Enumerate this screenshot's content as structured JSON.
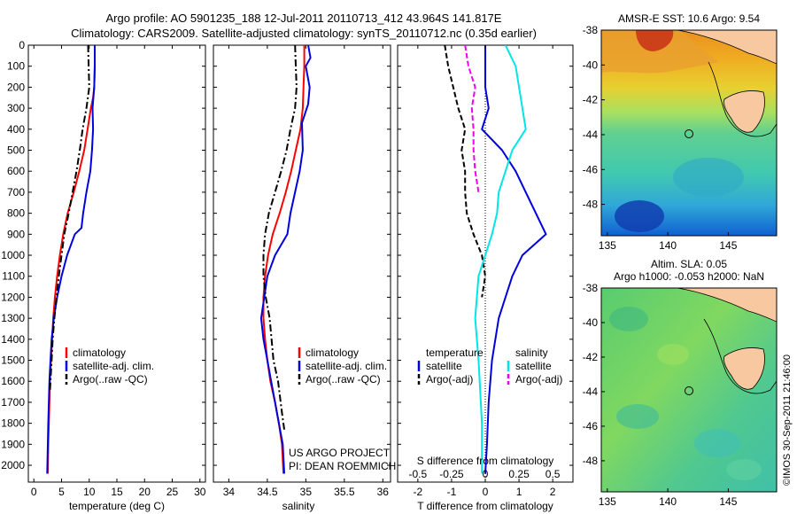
{
  "header": {
    "title_line1": "Argo profile: AO 5901235_188 12-Jul-2011 20110713_412 43.964S 141.817E",
    "title_line2": "Climatology: CARS2009. Satellite-adjusted climatology: synTS_20110712.nc (0.35d earlier)"
  },
  "colors": {
    "climatology": "#ff0000",
    "satellite": "#0000dd",
    "argo": "#000000",
    "sat_salinity": "#00e5e5",
    "argo_salinity": "#ee00ee"
  },
  "chart_data": [
    {
      "type": "line",
      "id": "temperature",
      "xlabel": "temperature (deg C)",
      "ylabel": "",
      "xlim": [
        -1,
        31
      ],
      "ylim": [
        2080,
        0
      ],
      "xticks": [
        0,
        5,
        10,
        15,
        20,
        25,
        30
      ],
      "yticks": [
        0,
        100,
        200,
        300,
        400,
        500,
        600,
        700,
        800,
        900,
        1000,
        1100,
        1200,
        1300,
        1400,
        1500,
        1600,
        1700,
        1800,
        1900,
        2000
      ],
      "legend": {
        "position": "lower-center",
        "labels": [
          "climatology",
          "satellite-adj. clim.",
          "Argo(..raw -QC)"
        ]
      },
      "series": [
        {
          "name": "climatology",
          "color": "#ff0000",
          "style": "solid",
          "x": [
            11,
            11,
            10.9,
            10.7,
            10.3,
            9.7,
            9.1,
            8.2,
            7.2,
            6.1,
            5.3,
            4.7,
            4.2,
            3.8,
            3.5,
            3.3,
            3.1,
            2.9,
            2.8,
            2.6,
            2.5
          ],
          "y": [
            0,
            100,
            200,
            250,
            300,
            400,
            500,
            600,
            700,
            800,
            900,
            1000,
            1100,
            1200,
            1300,
            1400,
            1500,
            1600,
            1700,
            1900,
            2040
          ]
        },
        {
          "name": "satellite-adj. clim.",
          "color": "#0000dd",
          "style": "solid",
          "x": [
            11,
            11,
            10.9,
            10.6,
            10.7,
            10.5,
            10.2,
            9.5,
            8.9,
            8.6,
            7.4,
            6.0,
            5.0,
            4.2,
            3.6,
            3.2,
            3.0,
            2.8,
            2.6,
            2.4
          ],
          "y": [
            0,
            100,
            200,
            300,
            400,
            500,
            600,
            700,
            800,
            870,
            900,
            1000,
            1100,
            1200,
            1300,
            1400,
            1500,
            1600,
            1800,
            2040
          ]
        },
        {
          "name": "Argo(..raw -QC)",
          "color": "#000000",
          "style": "dashdot",
          "x": [
            9.8,
            9.9,
            10.0,
            9.5,
            8.8,
            8.3,
            7.7,
            7.0,
            6.3,
            5.5,
            5.0,
            4.5,
            4.1,
            3.7,
            3.4,
            3.2,
            3.0,
            2.9
          ],
          "y": [
            0,
            100,
            200,
            300,
            400,
            500,
            600,
            700,
            800,
            900,
            1000,
            1100,
            1200,
            1300,
            1400,
            1500,
            1600,
            1650
          ]
        }
      ]
    },
    {
      "type": "line",
      "id": "salinity",
      "xlabel": "salinity",
      "ylabel": "",
      "xlim": [
        33.8,
        36.1
      ],
      "ylim": [
        2080,
        0
      ],
      "xticks": [
        34,
        34.5,
        35,
        35.5,
        36
      ],
      "legend": {
        "position": "lower-center",
        "labels": [
          "climatology",
          "satellite-adj. clim.",
          "Argo(..raw -QC)"
        ]
      },
      "annotation": [
        "US ARGO PROJECT",
        "PI: DEAN ROEMMICH"
      ],
      "series": [
        {
          "name": "climatology",
          "color": "#ff0000",
          "style": "solid",
          "x": [
            34.98,
            34.98,
            34.97,
            34.96,
            34.93,
            34.87,
            34.81,
            34.74,
            34.66,
            34.57,
            34.51,
            34.47,
            34.45,
            34.45,
            34.47,
            34.5,
            34.54,
            34.6,
            34.65,
            34.69,
            34.71
          ],
          "y": [
            0,
            100,
            200,
            300,
            400,
            500,
            600,
            700,
            800,
            900,
            1000,
            1100,
            1200,
            1300,
            1400,
            1500,
            1600,
            1700,
            1800,
            1900,
            2040
          ]
        },
        {
          "name": "satellite-adj. clim.",
          "color": "#0000dd",
          "style": "solid",
          "x": [
            35.03,
            35.06,
            35.0,
            35.05,
            35.03,
            34.95,
            34.96,
            34.92,
            34.86,
            34.8,
            34.76,
            34.6,
            34.5,
            34.46,
            34.42,
            34.45,
            34.5,
            34.55,
            34.6,
            34.65,
            34.7,
            34.72
          ],
          "y": [
            0,
            60,
            100,
            200,
            280,
            370,
            500,
            600,
            700,
            800,
            900,
            1000,
            1100,
            1200,
            1300,
            1400,
            1500,
            1600,
            1700,
            1800,
            1900,
            2040
          ]
        },
        {
          "name": "Argo(..raw -QC)",
          "color": "#000000",
          "style": "dashdot",
          "x": [
            34.86,
            34.87,
            34.88,
            34.86,
            34.8,
            34.75,
            34.68,
            34.6,
            34.52,
            34.47,
            34.45,
            34.45,
            34.48,
            34.53,
            34.58,
            34.64,
            34.69,
            34.72
          ],
          "y": [
            0,
            100,
            200,
            300,
            400,
            500,
            600,
            700,
            800,
            900,
            1000,
            1100,
            1200,
            1300,
            1500,
            1600,
            1750,
            1830
          ]
        }
      ]
    },
    {
      "type": "line",
      "id": "difference",
      "xlabel": "T difference from climatology",
      "xlabel_top": "S difference from climatology",
      "xlim": [
        -2.6,
        2.6
      ],
      "ylim": [
        2080,
        0
      ],
      "xticks": [
        -2,
        -1,
        0,
        1,
        2
      ],
      "xticks_top": [
        "-0.5",
        "-0.25",
        "0",
        "0.25",
        "0.5"
      ],
      "legend": {
        "position": "lower-center",
        "group1_title": "temperature",
        "group1": [
          "satellite",
          "Argo(-adj)"
        ],
        "group2_title": "salinity",
        "group2": [
          "satellite",
          "Argo(-adj)"
        ]
      },
      "series": [
        {
          "name": "temperature satellite",
          "color": "#0000dd",
          "style": "solid",
          "x": [
            0.0,
            0.0,
            0.1,
            -0.1,
            0.5,
            0.9,
            1.2,
            1.5,
            1.8,
            1.1,
            0.8,
            0.6,
            0.4,
            0.3,
            0.2,
            0.1,
            0.05,
            0.0
          ],
          "y": [
            0,
            200,
            300,
            400,
            500,
            600,
            700,
            800,
            900,
            1000,
            1100,
            1200,
            1300,
            1400,
            1500,
            1700,
            1900,
            2040
          ]
        },
        {
          "name": "temperature Argo(-adj)",
          "color": "#000000",
          "style": "dashed",
          "x": [
            -1.2,
            -1.1,
            -0.8,
            -0.6,
            -0.7,
            -0.6,
            -0.6,
            -0.55,
            -0.35,
            -0.1,
            0.0,
            -0.1
          ],
          "y": [
            0,
            100,
            300,
            400,
            500,
            600,
            700,
            800,
            900,
            1000,
            1100,
            1200
          ]
        },
        {
          "name": "salinity satellite",
          "color": "#00e5e5",
          "style": "solid",
          "x": [
            0.6,
            0.9,
            1.0,
            1.1,
            1.2,
            0.8,
            0.6,
            0.4,
            0.35,
            0.2,
            0.0,
            -0.2,
            -0.3,
            -0.2,
            -0.1,
            -0.1
          ],
          "y": [
            0,
            100,
            200,
            300,
            400,
            500,
            600,
            700,
            800,
            900,
            1000,
            1100,
            1300,
            1500,
            1800,
            2040
          ]
        },
        {
          "name": "salinity Argo(-adj)",
          "color": "#ee00ee",
          "style": "dashed",
          "x": [
            -0.6,
            -0.5,
            -0.3,
            -0.4,
            -0.35,
            -0.35,
            -0.3,
            -0.2
          ],
          "y": [
            0,
            100,
            200,
            300,
            400,
            500,
            600,
            700
          ]
        }
      ]
    },
    {
      "type": "heatmap",
      "id": "sst_map",
      "title": "AMSR-E SST: 10.6 Argo: 9.54",
      "xlim": [
        134.5,
        149
      ],
      "ylim": [
        -49.8,
        -38
      ],
      "xticks": [
        135,
        140,
        145
      ],
      "yticks": [
        -38,
        -40,
        -42,
        -44,
        -46,
        -48
      ],
      "argo_position": [
        141.8,
        -43.96
      ]
    },
    {
      "type": "heatmap",
      "id": "sla_map",
      "title": "Altim. SLA: 0.05",
      "subtitle": "Argo h1000: -0.053 h2000: NaN",
      "xlim": [
        134.5,
        149
      ],
      "ylim": [
        -49.8,
        -38
      ],
      "xticks": [
        135,
        140,
        145
      ],
      "yticks": [
        -38,
        -40,
        -42,
        -44,
        -46,
        -48
      ],
      "argo_position": [
        141.8,
        -43.96
      ]
    }
  ],
  "credit": "©IMOS 30-Sep-2011 21:46:00"
}
